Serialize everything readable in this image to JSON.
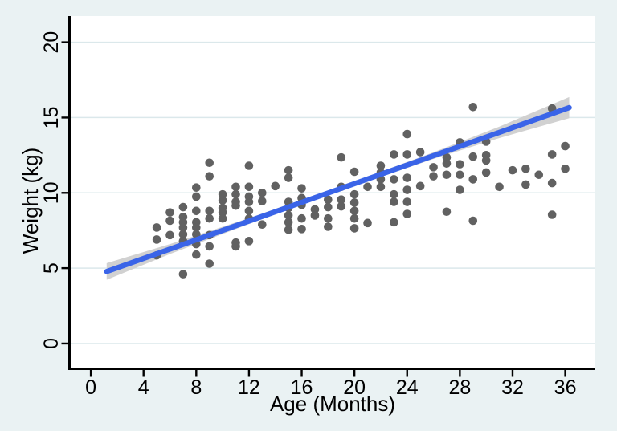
{
  "figure": {
    "background": "#eaf2f3",
    "plot_background": "#ffffff",
    "grid_color": "#dbe8eb",
    "axis_color": "#000000",
    "text_color": "#000000"
  },
  "chart_data": {
    "type": "scatter",
    "title": "",
    "xlabel": "Age (Months)",
    "ylabel": "Weight (kg)",
    "xlim": [
      -1.53,
      38.22
    ],
    "ylim": [
      -1.6,
      21.63
    ],
    "xticks": [
      0,
      4,
      8,
      12,
      16,
      20,
      24,
      28,
      32,
      36
    ],
    "yticks": [
      0,
      5,
      10,
      15,
      20
    ],
    "grid": "horizontal-gridlines",
    "legend": "none",
    "marker": {
      "shape": "circle",
      "color": "#616161",
      "radius": 5.3
    },
    "points": [
      [
        5,
        7.7
      ],
      [
        5,
        6.9
      ],
      [
        5,
        5.85
      ],
      [
        6,
        8.7
      ],
      [
        6,
        8.15
      ],
      [
        6,
        7.2
      ],
      [
        7,
        9.05
      ],
      [
        7,
        8.4
      ],
      [
        7,
        8.05
      ],
      [
        7,
        7.7
      ],
      [
        7,
        7.25
      ],
      [
        7,
        6.8
      ],
      [
        7,
        4.6
      ],
      [
        8,
        10.35
      ],
      [
        8,
        9.75
      ],
      [
        8,
        8.8
      ],
      [
        8,
        8.05
      ],
      [
        8,
        7.7
      ],
      [
        8,
        7.25
      ],
      [
        8,
        6.6
      ],
      [
        8,
        5.9
      ],
      [
        9,
        12.0
      ],
      [
        9,
        11.1
      ],
      [
        9,
        8.8
      ],
      [
        9,
        8.3
      ],
      [
        9,
        7.2
      ],
      [
        9,
        6.45
      ],
      [
        9,
        5.3
      ],
      [
        10,
        9.9
      ],
      [
        10,
        9.5
      ],
      [
        10,
        9.0
      ],
      [
        10,
        8.7
      ],
      [
        10,
        8.3
      ],
      [
        11,
        10.4
      ],
      [
        11,
        9.9
      ],
      [
        11,
        9.4
      ],
      [
        11,
        9.15
      ],
      [
        11,
        6.7
      ],
      [
        11,
        6.45
      ],
      [
        12,
        11.8
      ],
      [
        12,
        10.4
      ],
      [
        12,
        9.75
      ],
      [
        12,
        9.4
      ],
      [
        12,
        8.8
      ],
      [
        12,
        8.3
      ],
      [
        12,
        6.8
      ],
      [
        13,
        10.0
      ],
      [
        13,
        9.45
      ],
      [
        13,
        7.9
      ],
      [
        14,
        10.45
      ],
      [
        15,
        11.5
      ],
      [
        15,
        11.0
      ],
      [
        15,
        9.4
      ],
      [
        15,
        9.0
      ],
      [
        15,
        8.5
      ],
      [
        15,
        8.05
      ],
      [
        15,
        7.55
      ],
      [
        16,
        10.3
      ],
      [
        16,
        9.65
      ],
      [
        16,
        9.2
      ],
      [
        16,
        8.3
      ],
      [
        16,
        7.6
      ],
      [
        17,
        8.9
      ],
      [
        17,
        8.5
      ],
      [
        18,
        9.55
      ],
      [
        18,
        9.05
      ],
      [
        18,
        8.3
      ],
      [
        18,
        7.75
      ],
      [
        19,
        12.35
      ],
      [
        19,
        10.4
      ],
      [
        19,
        9.55
      ],
      [
        19,
        9.1
      ],
      [
        20,
        11.4
      ],
      [
        20,
        9.9
      ],
      [
        20,
        9.35
      ],
      [
        20,
        8.8
      ],
      [
        20,
        8.3
      ],
      [
        20,
        7.65
      ],
      [
        21,
        10.4
      ],
      [
        21,
        8.0
      ],
      [
        22,
        11.8
      ],
      [
        22,
        11.35
      ],
      [
        22,
        10.9
      ],
      [
        22,
        10.4
      ],
      [
        23,
        12.55
      ],
      [
        23,
        10.9
      ],
      [
        23,
        9.9
      ],
      [
        23,
        9.4
      ],
      [
        23,
        8.05
      ],
      [
        24,
        13.9
      ],
      [
        24,
        12.55
      ],
      [
        24,
        11.0
      ],
      [
        24,
        10.2
      ],
      [
        24,
        9.4
      ],
      [
        24,
        8.6
      ],
      [
        25,
        12.7
      ],
      [
        25,
        10.45
      ],
      [
        26,
        11.7
      ],
      [
        26,
        11.1
      ],
      [
        27,
        12.35
      ],
      [
        27,
        11.95
      ],
      [
        27,
        11.2
      ],
      [
        27,
        8.75
      ],
      [
        28,
        13.35
      ],
      [
        28,
        11.9
      ],
      [
        28,
        11.2
      ],
      [
        28,
        10.2
      ],
      [
        29,
        15.7
      ],
      [
        29,
        12.4
      ],
      [
        29,
        10.9
      ],
      [
        29,
        8.15
      ],
      [
        30,
        13.4
      ],
      [
        30,
        12.5
      ],
      [
        30,
        12.15
      ],
      [
        30,
        11.35
      ],
      [
        31,
        10.4
      ],
      [
        32,
        11.5
      ],
      [
        33,
        11.6
      ],
      [
        33,
        10.55
      ],
      [
        34,
        11.2
      ],
      [
        35,
        15.6
      ],
      [
        35,
        12.55
      ],
      [
        35,
        10.65
      ],
      [
        35,
        8.55
      ],
      [
        36,
        13.1
      ],
      [
        36,
        11.6
      ]
    ],
    "fit_line": {
      "type": "linear-fit",
      "color": "#3a64e8",
      "width": 6.5,
      "x": [
        1.2,
        36.3
      ],
      "y": [
        4.78,
        15.66
      ],
      "slope": 0.31,
      "intercept": 4.41
    },
    "ci_band": {
      "color": "#d1d1d1",
      "points": [
        {
          "x": 1.2,
          "lo": 4.23,
          "hi": 5.33
        },
        {
          "x": 6.0,
          "lo": 5.94,
          "hi": 6.6
        },
        {
          "x": 12.0,
          "lo": 7.93,
          "hi": 8.33
        },
        {
          "x": 19.0,
          "lo": 10.15,
          "hi": 10.45
        },
        {
          "x": 26.0,
          "lo": 12.25,
          "hi": 12.69
        },
        {
          "x": 31.0,
          "lo": 13.64,
          "hi": 14.4
        },
        {
          "x": 36.3,
          "lo": 14.96,
          "hi": 16.36
        }
      ]
    }
  }
}
